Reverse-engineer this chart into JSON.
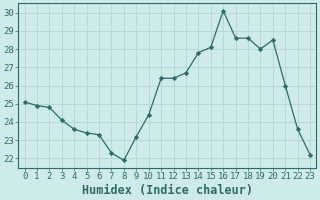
{
  "x": [
    0,
    1,
    2,
    3,
    4,
    5,
    6,
    7,
    8,
    9,
    10,
    11,
    12,
    13,
    14,
    15,
    16,
    17,
    18,
    19,
    20,
    21,
    22,
    23
  ],
  "y": [
    25.1,
    24.9,
    24.8,
    24.1,
    23.6,
    23.4,
    23.3,
    22.3,
    21.9,
    23.2,
    24.4,
    26.4,
    26.4,
    26.7,
    27.8,
    28.1,
    30.1,
    28.6,
    28.6,
    28.0,
    28.5,
    26.0,
    23.6,
    22.2
  ],
  "line_color": "#2d6b6b",
  "marker": "D",
  "marker_size": 2.2,
  "bg_color": "#ceeaea",
  "grid_color": "#b8d8d8",
  "xlabel": "Humidex (Indice chaleur)",
  "xlim": [
    -0.5,
    23.5
  ],
  "ylim": [
    21.5,
    30.5
  ],
  "yticks": [
    22,
    23,
    24,
    25,
    26,
    27,
    28,
    29,
    30
  ],
  "xticks": [
    0,
    1,
    2,
    3,
    4,
    5,
    6,
    7,
    8,
    9,
    10,
    11,
    12,
    13,
    14,
    15,
    16,
    17,
    18,
    19,
    20,
    21,
    22,
    23
  ],
  "tick_label_size": 6.5,
  "xlabel_size": 8.5,
  "spine_color": "#2d6b6b"
}
